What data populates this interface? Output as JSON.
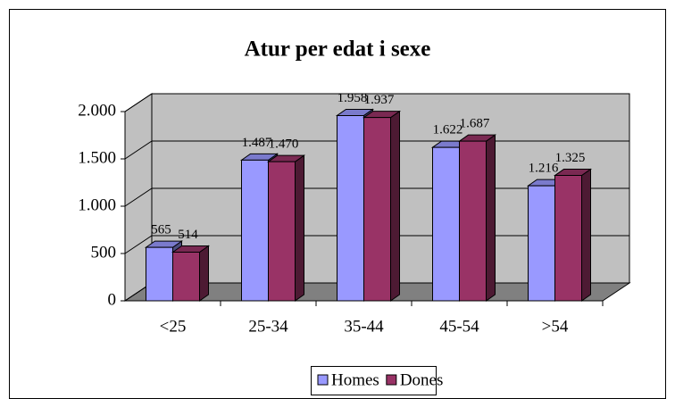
{
  "chart_data": {
    "type": "bar3d",
    "title": "Atur per edat i sexe",
    "categories": [
      "<25",
      "25-34",
      "35-44",
      "45-54",
      ">54"
    ],
    "series": [
      {
        "name": "Homes",
        "color": "#9999ff",
        "values": [
          565,
          1487,
          1958,
          1622,
          1216
        ],
        "value_labels": [
          "565",
          "1.487",
          "1.958",
          "1.622",
          "1.216"
        ]
      },
      {
        "name": "Dones",
        "color": "#993366",
        "values": [
          514,
          1470,
          1937,
          1687,
          1325
        ],
        "value_labels": [
          "514",
          "1.470",
          "1.937",
          "1.687",
          "1.325"
        ]
      }
    ],
    "ylim": [
      0,
      2000
    ],
    "yticks": [
      0,
      500,
      {
        "value": 1000,
        "label": "1.000"
      },
      {
        "value": 1500,
        "label": "1.500"
      },
      {
        "value": 2000,
        "label": "2.000"
      }
    ],
    "grid": true,
    "legend": "bottom"
  }
}
